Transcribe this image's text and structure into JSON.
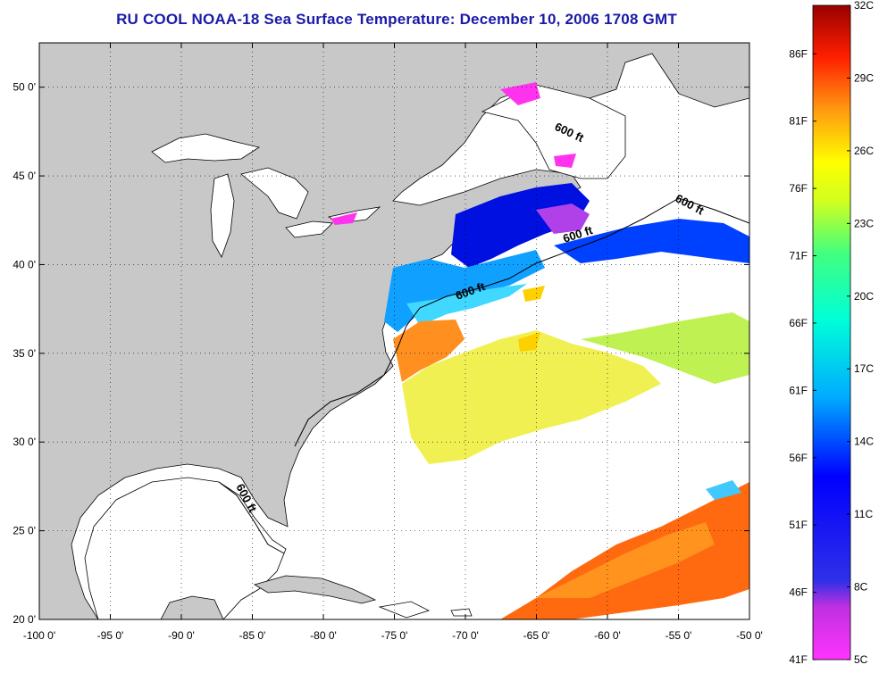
{
  "title": "RU COOL  NOAA-18  Sea Surface Temperature:  December 10, 2006 1708 GMT",
  "map": {
    "lon_ticks": [
      "-100 0'",
      "-95 0'",
      "-90 0'",
      "-85 0'",
      "-80 0'",
      "-75 0'",
      "-70 0'",
      "-65 0'",
      "-60 0'",
      "-55 0'",
      "-50 0'"
    ],
    "lat_ticks": [
      "50 0'",
      "45 0'",
      "40 0'",
      "35 0'",
      "30 0'",
      "25 0'",
      "20 0'"
    ],
    "lon_range": [
      -100,
      -50
    ],
    "lat_range": [
      20,
      52.5
    ],
    "contour_labels": [
      "600 ft",
      "600 ft",
      "600 ft",
      "600 ft",
      "600 ft"
    ],
    "colors": {
      "land": "#c8c8c8",
      "ocean": "#ffffff",
      "title": "#1a1aa8"
    }
  },
  "colorbar": {
    "fahrenheit": [
      "86F",
      "81F",
      "76F",
      "71F",
      "66F",
      "61F",
      "56F",
      "51F",
      "46F",
      "41F"
    ],
    "celsius": [
      "32C",
      "29C",
      "26C",
      "23C",
      "20C",
      "17C",
      "14C",
      "11C",
      "8C",
      "5C"
    ],
    "range_c": [
      5,
      32
    ]
  }
}
